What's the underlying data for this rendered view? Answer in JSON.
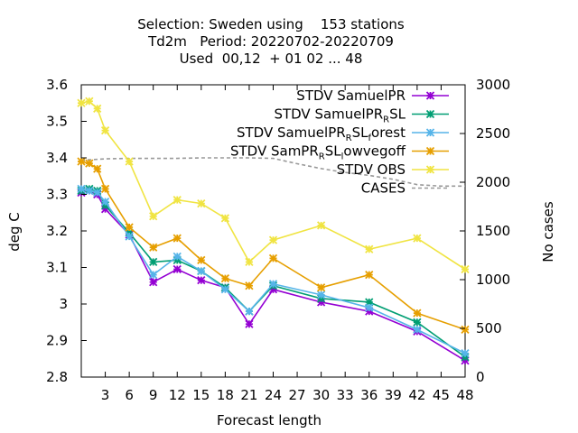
{
  "chart_data": {
    "type": "line",
    "title_lines": [
      "Selection: Sweden using    153 stations",
      "Td2m   Period: 20220702-20220709",
      "Used  00,12  + 01 02 ... 48"
    ],
    "xlabel": "Forecast length",
    "ylabel": "deg C",
    "y2label": "No cases",
    "xlim": [
      0,
      48
    ],
    "ylim": [
      2.8,
      3.6
    ],
    "y2lim": [
      0,
      3000
    ],
    "x_ticks": [
      3,
      6,
      9,
      12,
      15,
      18,
      21,
      24,
      27,
      30,
      33,
      36,
      39,
      42,
      45,
      48
    ],
    "y_ticks": [
      2.8,
      2.9,
      3,
      3.1,
      3.2,
      3.3,
      3.4,
      3.5,
      3.6
    ],
    "y_tick_labels": [
      "2.8",
      "2.9",
      "3",
      "3.1",
      "3.2",
      "3.3",
      "3.4",
      "3.5",
      "3.6"
    ],
    "y2_ticks": [
      0,
      500,
      1000,
      1500,
      2000,
      2500,
      3000
    ],
    "legend_position": "top-right",
    "grid": false,
    "series": [
      {
        "legend": {
          "main": "STDV SamuelPR",
          "sub": "",
          "tail": ""
        },
        "color": "#9400d3",
        "marker": "x",
        "x": [
          0,
          1,
          2,
          3,
          6,
          9,
          12,
          15,
          18,
          21,
          24,
          30,
          36,
          42,
          48
        ],
        "y": [
          3.305,
          3.31,
          3.3,
          3.26,
          3.19,
          3.06,
          3.095,
          3.065,
          3.045,
          2.945,
          3.04,
          3.005,
          2.98,
          2.925,
          2.845
        ]
      },
      {
        "legend": {
          "main": "STDV SamuelPR",
          "sub": "R",
          "tail": "SL"
        },
        "color": "#009e73",
        "marker": "x",
        "x": [
          0,
          1,
          2,
          3,
          6,
          9,
          12,
          15,
          18,
          21,
          24,
          30,
          36,
          42,
          48
        ],
        "y": [
          3.31,
          3.315,
          3.31,
          3.27,
          3.195,
          3.115,
          3.12,
          3.09,
          3.045,
          2.98,
          3.05,
          3.015,
          3.005,
          2.95,
          2.855
        ]
      },
      {
        "legend": {
          "main": "STDV SamuelPR",
          "sub": "R",
          "tail": "SL",
          "sub2": "f",
          "tail2": "orest"
        },
        "color": "#56b4e9",
        "marker": "x",
        "x": [
          0,
          1,
          2,
          3,
          6,
          9,
          12,
          15,
          18,
          21,
          24,
          30,
          36,
          42,
          48
        ],
        "y": [
          3.315,
          3.31,
          3.305,
          3.28,
          3.185,
          3.08,
          3.13,
          3.09,
          3.04,
          2.98,
          3.055,
          3.025,
          2.99,
          2.93,
          2.865
        ]
      },
      {
        "legend": {
          "main": "STDV SamPR",
          "sub": "R",
          "tail": "SL",
          "sub2": "l",
          "tail2": "owvegoff"
        },
        "color": "#e69f00",
        "marker": "x",
        "x": [
          0,
          1,
          2,
          3,
          6,
          9,
          12,
          15,
          18,
          21,
          24,
          30,
          36,
          42,
          48
        ],
        "y": [
          3.39,
          3.385,
          3.37,
          3.315,
          3.21,
          3.155,
          3.18,
          3.12,
          3.07,
          3.05,
          3.125,
          3.045,
          3.08,
          2.975,
          2.93
        ]
      },
      {
        "legend": {
          "main": "STDV OBS",
          "sub": "",
          "tail": ""
        },
        "color": "#f0e442",
        "marker": "x",
        "x": [
          0,
          1,
          2,
          3,
          6,
          9,
          12,
          15,
          18,
          21,
          24,
          30,
          36,
          42,
          48
        ],
        "y": [
          3.55,
          3.555,
          3.535,
          3.475,
          3.39,
          3.24,
          3.285,
          3.275,
          3.235,
          3.115,
          3.175,
          3.215,
          3.15,
          3.18,
          3.095
        ]
      }
    ],
    "cases": {
      "legend": "CASES",
      "color": "#999999",
      "x": [
        0,
        1,
        2,
        3,
        6,
        9,
        12,
        15,
        18,
        21,
        24,
        27,
        30,
        33,
        36,
        39,
        42,
        45,
        48
      ],
      "y": [
        2230,
        2230,
        2235,
        2240,
        2245,
        2245,
        2245,
        2250,
        2250,
        2250,
        2245,
        2190,
        2140,
        2100,
        2070,
        2030,
        1975,
        1960,
        1960
      ]
    }
  }
}
